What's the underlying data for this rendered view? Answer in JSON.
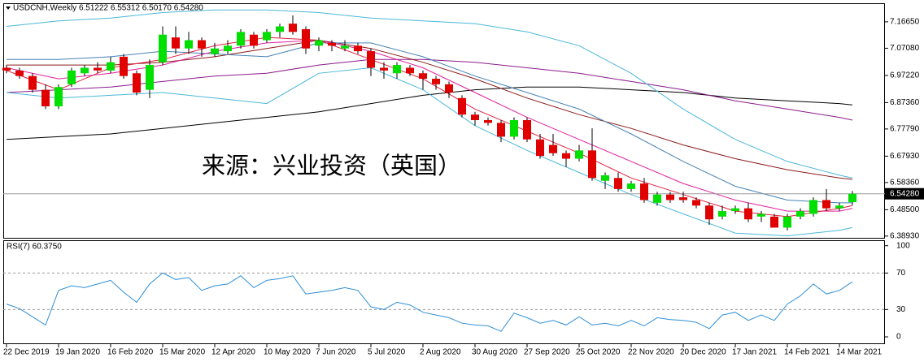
{
  "chart_data": [
    {
      "type": "candlestick",
      "title": "USDCNH,Weekly  6.51222 6.55312 6.50170 6.54280",
      "annotation": "来源：兴业投资（英国）",
      "x": [
        "2019-12-22",
        "2019-12-29",
        "2020-01-05",
        "2020-01-12",
        "2020-01-19",
        "2020-01-26",
        "2020-02-02",
        "2020-02-09",
        "2020-02-16",
        "2020-02-23",
        "2020-03-01",
        "2020-03-08",
        "2020-03-15",
        "2020-03-22",
        "2020-03-29",
        "2020-04-05",
        "2020-04-12",
        "2020-04-19",
        "2020-04-26",
        "2020-05-03",
        "2020-05-10",
        "2020-05-17",
        "2020-05-24",
        "2020-05-31",
        "2020-06-07",
        "2020-06-14",
        "2020-06-21",
        "2020-06-28",
        "2020-07-05",
        "2020-07-12",
        "2020-07-19",
        "2020-07-26",
        "2020-08-02",
        "2020-08-09",
        "2020-08-16",
        "2020-08-23",
        "2020-08-30",
        "2020-09-06",
        "2020-09-13",
        "2020-09-20",
        "2020-09-27",
        "2020-10-04",
        "2020-10-11",
        "2020-10-18",
        "2020-10-25",
        "2020-11-01",
        "2020-11-08",
        "2020-11-15",
        "2020-11-22",
        "2020-11-29",
        "2020-12-06",
        "2020-12-13",
        "2020-12-20",
        "2020-12-27",
        "2021-01-03",
        "2021-01-10",
        "2021-01-17",
        "2021-01-24",
        "2021-01-31",
        "2021-02-07",
        "2021-02-14",
        "2021-02-21",
        "2021-02-28",
        "2021-03-07",
        "2021-03-14",
        "2021-03-21"
      ],
      "open": [
        7.0,
        6.99,
        6.97,
        6.92,
        6.86,
        6.94,
        6.98,
        7.0,
        6.99,
        7.04,
        6.98,
        6.92,
        7.02,
        7.11,
        7.07,
        7.1,
        7.05,
        7.06,
        7.08,
        7.12,
        7.1,
        7.13,
        7.16,
        7.14,
        7.08,
        7.09,
        7.07,
        7.08,
        7.06,
        7.0,
        6.98,
        7.0,
        6.98,
        6.96,
        6.94,
        6.89,
        6.83,
        6.81,
        6.8,
        6.75,
        6.81,
        6.74,
        6.72,
        6.69,
        6.67,
        6.7,
        6.59,
        6.6,
        6.56,
        6.58,
        6.51,
        6.54,
        6.53,
        6.52,
        6.5,
        6.46,
        6.48,
        6.49,
        6.46,
        6.46,
        6.42,
        6.46,
        6.47,
        6.52,
        6.49,
        6.51222
      ],
      "high": [
        7.01,
        7.0,
        6.98,
        6.94,
        6.94,
        7.0,
        7.01,
        7.02,
        7.04,
        7.05,
        6.99,
        7.03,
        7.15,
        7.15,
        7.13,
        7.11,
        7.09,
        7.1,
        7.14,
        7.13,
        7.14,
        7.16,
        7.19,
        7.15,
        7.11,
        7.1,
        7.1,
        7.09,
        7.07,
        7.02,
        7.02,
        7.01,
        6.99,
        6.97,
        6.95,
        6.9,
        6.84,
        6.82,
        6.81,
        6.82,
        6.82,
        6.76,
        6.76,
        6.7,
        6.72,
        6.78,
        6.62,
        6.62,
        6.59,
        6.6,
        6.55,
        6.55,
        6.55,
        6.53,
        6.51,
        6.5,
        6.5,
        6.51,
        6.48,
        6.47,
        6.47,
        6.49,
        6.53,
        6.56,
        6.51,
        6.55312
      ],
      "low": [
        6.98,
        6.96,
        6.91,
        6.85,
        6.85,
        6.93,
        6.97,
        6.98,
        6.98,
        6.96,
        6.9,
        6.89,
        7.01,
        7.05,
        7.05,
        7.04,
        7.04,
        7.05,
        7.07,
        7.07,
        7.09,
        7.11,
        7.12,
        7.05,
        7.06,
        7.06,
        7.06,
        7.05,
        6.97,
        6.96,
        6.96,
        6.97,
        6.92,
        6.92,
        6.89,
        6.82,
        6.79,
        6.79,
        6.73,
        6.74,
        6.73,
        6.67,
        6.68,
        6.64,
        6.66,
        6.59,
        6.56,
        6.55,
        6.55,
        6.51,
        6.5,
        6.51,
        6.51,
        6.49,
        6.43,
        6.45,
        6.47,
        6.44,
        6.44,
        6.42,
        6.41,
        6.45,
        6.46,
        6.48,
        6.48,
        6.5017
      ],
      "close": [
        6.99,
        6.97,
        6.92,
        6.86,
        6.93,
        6.99,
        7.0,
        6.99,
        7.02,
        6.97,
        6.91,
        7.01,
        7.12,
        7.07,
        7.1,
        7.07,
        7.07,
        7.08,
        7.13,
        7.08,
        7.13,
        7.15,
        7.13,
        7.07,
        7.1,
        7.08,
        7.08,
        7.06,
        7.0,
        6.99,
        7.01,
        6.98,
        6.96,
        6.94,
        6.91,
        6.83,
        6.81,
        6.8,
        6.75,
        6.81,
        6.74,
        6.68,
        6.69,
        6.67,
        6.7,
        6.6,
        6.61,
        6.56,
        6.58,
        6.52,
        6.54,
        6.52,
        6.52,
        6.5,
        6.45,
        6.48,
        6.49,
        6.45,
        6.47,
        6.42,
        6.46,
        6.48,
        6.52,
        6.49,
        6.5,
        6.5428
      ],
      "up_color": "#00e000",
      "down_color": "#e00000",
      "wick_color": "#000000",
      "indicator_x": [
        "2019-12-22",
        "2020-01-19",
        "2020-02-16",
        "2020-03-15",
        "2020-04-12",
        "2020-05-10",
        "2020-06-07",
        "2020-07-05",
        "2020-08-02",
        "2020-08-30",
        "2020-09-27",
        "2020-10-25",
        "2020-11-22",
        "2020-12-20",
        "2021-01-17",
        "2021-02-14",
        "2021-03-14",
        "2021-03-21"
      ],
      "indicators": [
        {
          "color": "#000000",
          "values": [
            6.74,
            6.75,
            6.76,
            6.78,
            6.8,
            6.82,
            6.84,
            6.87,
            6.9,
            6.92,
            6.93,
            6.93,
            6.92,
            6.91,
            6.89,
            6.88,
            6.87,
            6.865
          ]
        },
        {
          "color": "#8b1a8b",
          "values": [
            6.91,
            6.92,
            6.93,
            6.95,
            6.97,
            6.98,
            7.01,
            7.03,
            7.03,
            7.02,
            7.0,
            6.98,
            6.95,
            6.92,
            6.88,
            6.85,
            6.82,
            6.81
          ]
        },
        {
          "color": "#8b1a1a",
          "values": [
            7.01,
            7.01,
            7.01,
            7.02,
            7.04,
            7.07,
            7.1,
            7.07,
            7.02,
            6.96,
            6.89,
            6.83,
            6.78,
            6.72,
            6.67,
            6.63,
            6.6,
            6.595
          ]
        },
        {
          "color": "#4bb8d8",
          "values": [
            7.15,
            7.17,
            7.18,
            7.2,
            7.21,
            7.21,
            7.2,
            7.18,
            7.17,
            7.16,
            7.13,
            7.08,
            6.98,
            6.85,
            6.74,
            6.66,
            6.61,
            6.6
          ]
        },
        {
          "color": "#4bb8d8",
          "values": [
            6.91,
            6.89,
            6.9,
            6.91,
            6.89,
            6.87,
            6.98,
            7.0,
            6.92,
            6.79,
            6.7,
            6.62,
            6.54,
            6.47,
            6.4,
            6.39,
            6.41,
            6.42
          ]
        },
        {
          "color": "#4682b4",
          "values": [
            7.03,
            7.03,
            7.04,
            7.06,
            7.05,
            7.04,
            7.09,
            7.09,
            7.04,
            6.97,
            6.91,
            6.85,
            6.76,
            6.66,
            6.57,
            6.52,
            6.51,
            6.51
          ]
        },
        {
          "color": "#e0209e",
          "values": [
            7.0,
            6.96,
            6.98,
            7.01,
            7.06,
            7.09,
            7.1,
            7.06,
            7.0,
            6.91,
            6.82,
            6.74,
            6.66,
            6.58,
            6.52,
            6.48,
            6.48,
            6.49
          ]
        },
        {
          "color": "#e0203f",
          "values": [
            6.99,
            6.92,
            7.0,
            7.03,
            7.08,
            7.11,
            7.1,
            7.03,
            6.96,
            6.85,
            6.77,
            6.69,
            6.6,
            6.54,
            6.48,
            6.46,
            6.49,
            6.5
          ]
        }
      ],
      "ylim": [
        6.383,
        7.234
      ],
      "yticks": [
        {
          "value": 7.1665,
          "label": "7.16650"
        },
        {
          "value": 7.0708,
          "label": "7.07080"
        },
        {
          "value": 6.9722,
          "label": "6.97220"
        },
        {
          "value": 6.8736,
          "label": "6.87360"
        },
        {
          "value": 6.7779,
          "label": "6.77790"
        },
        {
          "value": 6.6793,
          "label": "6.67930"
        },
        {
          "value": 6.5836,
          "label": "6.58360"
        },
        {
          "value": 6.485,
          "label": "6.48500"
        },
        {
          "value": 6.3893,
          "label": "6.38930"
        }
      ],
      "price_line": {
        "value": 6.5428,
        "label": "6.54280"
      }
    },
    {
      "type": "line",
      "title": "RSI(7) 60.3750",
      "color": "#2f8fd8",
      "values": [
        36,
        31,
        22,
        13,
        51,
        56,
        54,
        58,
        62,
        49,
        38,
        58,
        70,
        63,
        65,
        51,
        56,
        58,
        67,
        54,
        62,
        64,
        67,
        47,
        49,
        51,
        54,
        51,
        33,
        30,
        38,
        35,
        27,
        24,
        21,
        15,
        13,
        12,
        6,
        26,
        21,
        15,
        18,
        13,
        22,
        13,
        15,
        12,
        18,
        12,
        21,
        19,
        18,
        16,
        9,
        24,
        27,
        18,
        24,
        18,
        36,
        45,
        58,
        47,
        51,
        60.375
      ],
      "ylim": [
        -8,
        106
      ],
      "yticks": [
        100,
        70,
        30,
        0
      ],
      "levels": [
        70,
        30
      ],
      "xticks": [
        {
          "value": "2019-12-22",
          "label": "22 Dec 2019"
        },
        {
          "value": "2020-01-19",
          "label": "19 Jan 2020"
        },
        {
          "value": "2020-02-16",
          "label": "16 Feb 2020"
        },
        {
          "value": "2020-03-15",
          "label": "15 Mar 2020"
        },
        {
          "value": "2020-04-12",
          "label": "12 Apr 2020"
        },
        {
          "value": "2020-05-10",
          "label": "10 May 2020"
        },
        {
          "value": "2020-06-07",
          "label": "7 Jun 2020"
        },
        {
          "value": "2020-07-05",
          "label": "5 Jul 2020"
        },
        {
          "value": "2020-08-02",
          "label": "2 Aug 2020"
        },
        {
          "value": "2020-08-30",
          "label": "30 Aug 2020"
        },
        {
          "value": "2020-09-27",
          "label": "27 Sep 2020"
        },
        {
          "value": "2020-10-25",
          "label": "25 Oct 2020"
        },
        {
          "value": "2020-11-22",
          "label": "22 Nov 2020"
        },
        {
          "value": "2020-12-20",
          "label": "20 Dec 2020"
        },
        {
          "value": "2021-01-17",
          "label": "17 Jan 2021"
        },
        {
          "value": "2021-02-14",
          "label": "14 Feb 2021"
        },
        {
          "value": "2021-03-14",
          "label": "14 Mar 2021"
        }
      ]
    }
  ]
}
